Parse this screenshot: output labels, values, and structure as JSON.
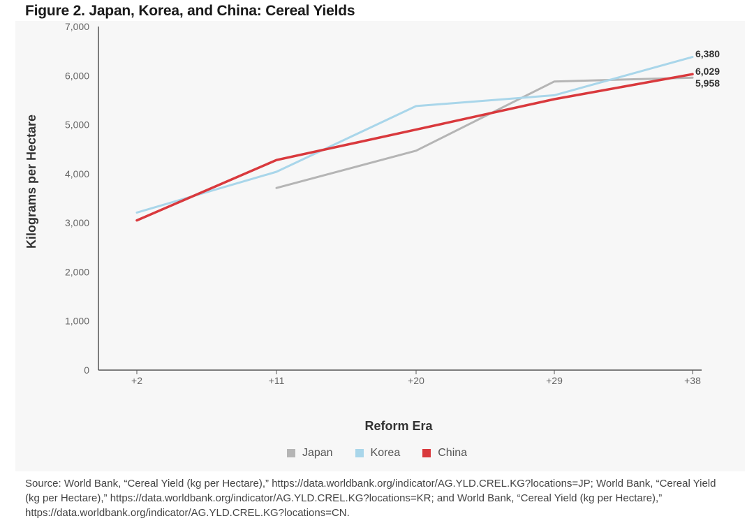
{
  "title": "Figure 2. Japan, Korea, and China: Cereal Yields",
  "chart_data": {
    "type": "line",
    "title": "Figure 2. Japan, Korea, and China: Cereal Yields",
    "xlabel": "Reform Era",
    "ylabel": "Kilograms per Hectare",
    "categories": [
      "+2",
      "+11",
      "+20",
      "+29",
      "+38"
    ],
    "ylim": [
      0,
      7000
    ],
    "yticks": [
      0,
      1000,
      2000,
      3000,
      4000,
      5000,
      6000,
      7000
    ],
    "ytick_labels": [
      "0",
      "1,000",
      "2,000",
      "3,000",
      "4,000",
      "5,000",
      "6,000",
      "7,000"
    ],
    "grid": false,
    "legend_position": "bottom",
    "series": [
      {
        "name": "Japan",
        "color": "#b5b5b5",
        "values": [
          null,
          3710,
          4470,
          5880,
          5958
        ]
      },
      {
        "name": "Korea",
        "color": "#a9d6ea",
        "values": [
          3210,
          4040,
          5380,
          5600,
          6380
        ]
      },
      {
        "name": "China",
        "color": "#d9393d",
        "values": [
          3050,
          4280,
          4900,
          5520,
          6029
        ]
      }
    ],
    "end_labels": [
      {
        "series": "Korea",
        "text": "6,380"
      },
      {
        "series": "China",
        "text": "6,029"
      },
      {
        "series": "Japan",
        "text": "5,958"
      }
    ]
  },
  "legend": [
    {
      "name": "Japan",
      "color": "#b5b5b5"
    },
    {
      "name": "Korea",
      "color": "#a9d6ea"
    },
    {
      "name": "China",
      "color": "#d9393d"
    }
  ],
  "source": "Source: World Bank, “Cereal Yield (kg per Hectare),” https://data.worldbank.org/indicator/AG.YLD.CREL.KG?locations=JP; World Bank, “Cereal Yield (kg per Hectare),” https://data.worldbank.org/indicator/AG.YLD.CREL.KG?locations=KR; and World Bank, “Cereal Yield (kg per Hectare),” https://data.worldbank.org/indicator/AG.YLD.CREL.KG?locations=CN."
}
